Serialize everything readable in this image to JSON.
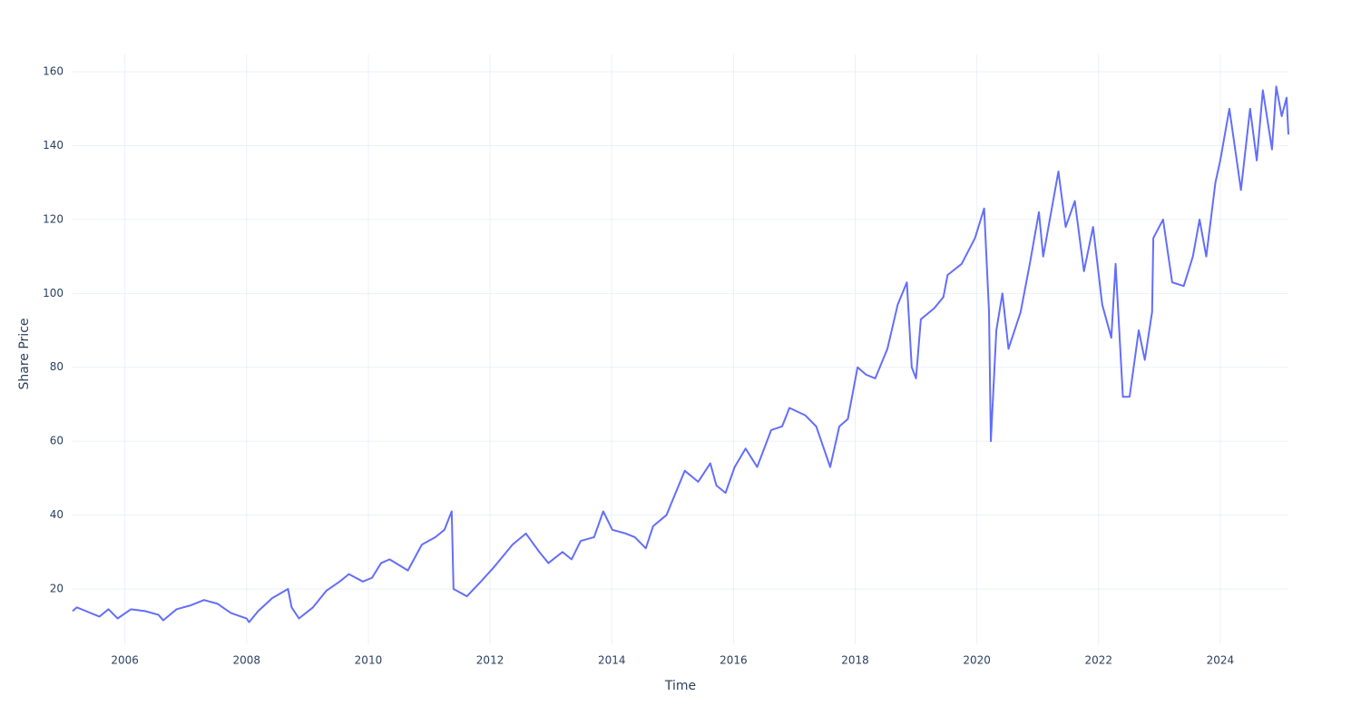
{
  "chart_data": {
    "type": "line",
    "x_label": "Time",
    "y_label": "Share Price",
    "color": "#636efa",
    "grid": true,
    "x": [
      2005.14,
      2005.21,
      2005.36,
      2005.58,
      2005.73,
      2005.88,
      2006.1,
      2006.33,
      2006.55,
      2006.63,
      2006.85,
      2007.07,
      2007.3,
      2007.52,
      2007.74,
      2008.0,
      2008.04,
      2008.19,
      2008.42,
      2008.68,
      2008.74,
      2008.86,
      2009.09,
      2009.31,
      2009.53,
      2009.68,
      2009.91,
      2010.06,
      2010.21,
      2010.35,
      2010.65,
      2010.88,
      2011.1,
      2011.25,
      2011.37,
      2011.4,
      2011.62,
      2011.85,
      2012.07,
      2012.37,
      2012.59,
      2012.81,
      2012.96,
      2013.19,
      2013.34,
      2013.49,
      2013.71,
      2013.86,
      2014.01,
      2014.23,
      2014.38,
      2014.56,
      2014.68,
      2014.9,
      2015.05,
      2015.2,
      2015.42,
      2015.62,
      2015.72,
      2015.87,
      2016.02,
      2016.2,
      2016.39,
      2016.62,
      2016.8,
      2016.92,
      2017.18,
      2017.36,
      2017.59,
      2017.74,
      2017.88,
      2018.04,
      2018.18,
      2018.33,
      2018.53,
      2018.7,
      2018.85,
      2018.93,
      2019.0,
      2019.08,
      2019.3,
      2019.45,
      2019.52,
      2019.75,
      2019.97,
      2020.12,
      2020.2,
      2020.23,
      2020.32,
      2020.42,
      2020.52,
      2020.72,
      2020.87,
      2021.02,
      2021.09,
      2021.34,
      2021.46,
      2021.61,
      2021.76,
      2021.91,
      2022.06,
      2022.21,
      2022.28,
      2022.4,
      2022.51,
      2022.66,
      2022.76,
      2022.88,
      2022.9,
      2023.06,
      2023.21,
      2023.4,
      2023.55,
      2023.66,
      2023.77,
      2023.92,
      2024.0,
      2024.15,
      2024.34,
      2024.49,
      2024.6,
      2024.7,
      2024.85,
      2024.92,
      2025.01,
      2025.09,
      2025.12
    ],
    "values": [
      14,
      15,
      14,
      12.5,
      14.5,
      12,
      14.5,
      14,
      13,
      11.5,
      14.5,
      15.5,
      17,
      16,
      13.5,
      12,
      11,
      14,
      17.5,
      20,
      15,
      12,
      15,
      19.5,
      22,
      24,
      22,
      23,
      27,
      28,
      25,
      32,
      34,
      36,
      41,
      20,
      18,
      22,
      26,
      32,
      35,
      30,
      27,
      30,
      28,
      33,
      34,
      41,
      36,
      35,
      34,
      31,
      37,
      40,
      46,
      52,
      49,
      54,
      48,
      46,
      53,
      58,
      53,
      63,
      64,
      69,
      67,
      64,
      53,
      64,
      66,
      80,
      78,
      77,
      85,
      97,
      103,
      80,
      77,
      93,
      96,
      99,
      105,
      108,
      115,
      123,
      95,
      60,
      90,
      100,
      85,
      95,
      108,
      122,
      110,
      133,
      118,
      125,
      106,
      118,
      97,
      88,
      108,
      72,
      72,
      90,
      82,
      95,
      115,
      120,
      103,
      102,
      110,
      120,
      110,
      130,
      136,
      150,
      128,
      150,
      136,
      155,
      139,
      156,
      148,
      153,
      143
    ],
    "xlim": [
      2005.14,
      2025.12
    ],
    "ylim": [
      5,
      164.7
    ],
    "xticks": [
      2006,
      2008,
      2010,
      2012,
      2014,
      2016,
      2018,
      2020,
      2022,
      2024
    ],
    "yticks": [
      20,
      40,
      60,
      80,
      100,
      120,
      140,
      160
    ]
  }
}
